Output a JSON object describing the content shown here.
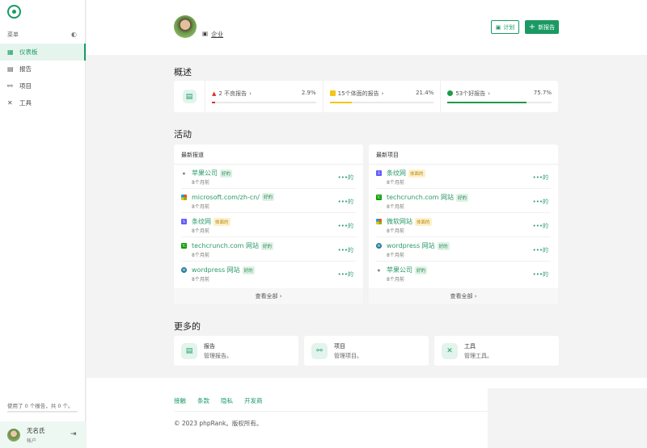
{
  "sidebar": {
    "menu_label": "菜单",
    "items": [
      {
        "label": "仪表板",
        "icon": "grid-icon",
        "active": true
      },
      {
        "label": "报告",
        "icon": "report-icon"
      },
      {
        "label": "项目",
        "icon": "project-icon"
      },
      {
        "label": "工具",
        "icon": "tools-icon"
      }
    ],
    "usage": "使用了 0 个报告，共 0 个。",
    "usage_fraction": 0,
    "user": {
      "name": "无名氏",
      "role": "帐户"
    }
  },
  "header": {
    "org": "企业",
    "plan_label": "计划",
    "new_report_label": "新报告"
  },
  "overview": {
    "title": "概述",
    "stats": [
      {
        "label": "2 不良报告",
        "percent": "2.9%",
        "value": 2.9,
        "color": "#d9302f"
      },
      {
        "label": "15个体面的报告",
        "percent": "21.4%",
        "value": 21.4,
        "color": "#f5c518"
      },
      {
        "label": "53个好报告",
        "percent": "75.7%",
        "value": 75.7,
        "color": "#1f9a48"
      }
    ]
  },
  "activity": {
    "title": "活动",
    "view_all": "查看全部",
    "latest_reports": {
      "title": "最新报道",
      "items": [
        {
          "name": "苹果公司",
          "badge": "好的",
          "type": "good",
          "icon": "apple-icon",
          "time": "8个月前"
        },
        {
          "name": "microsoft.com/zh-cn/",
          "badge": "好的",
          "type": "good",
          "icon": "microsoft-icon",
          "time": "8个月前"
        },
        {
          "name": "条纹网",
          "badge": "体面的",
          "type": "dec",
          "icon": "stripe-icon",
          "time": "8个月前"
        },
        {
          "name": "techcrunch.com 网站",
          "badge": "好的",
          "type": "good",
          "icon": "techcrunch-icon",
          "time": "8个月前"
        },
        {
          "name": "wordpress 网站",
          "badge": "好的",
          "type": "good",
          "icon": "wordpress-icon",
          "time": "8个月前"
        }
      ]
    },
    "latest_projects": {
      "title": "最新项目",
      "items": [
        {
          "name": "条纹网",
          "badge": "体面的",
          "type": "dec",
          "icon": "stripe-icon",
          "time": "8个月前"
        },
        {
          "name": "techcrunch.com 网站",
          "badge": "好的",
          "type": "good",
          "icon": "techcrunch-icon",
          "time": "8个月前"
        },
        {
          "name": "微软网站",
          "badge": "体面的",
          "type": "dec",
          "icon": "microsoft-icon",
          "time": "8个月前"
        },
        {
          "name": "wordpress 网站",
          "badge": "好的",
          "type": "good",
          "icon": "wordpress-icon",
          "time": "8个月前"
        },
        {
          "name": "苹果公司",
          "badge": "好的",
          "type": "good",
          "icon": "apple-icon",
          "time": "8个月前"
        }
      ]
    },
    "more_label": "•••的"
  },
  "more": {
    "title": "更多的",
    "cards": [
      {
        "title": "报告",
        "desc": "管理报告。",
        "icon": "report-icon"
      },
      {
        "title": "项目",
        "desc": "管理项目。",
        "icon": "project-icon"
      },
      {
        "title": "工具",
        "desc": "管理工具。",
        "icon": "tools-icon"
      }
    ]
  },
  "footer": {
    "links": [
      "接触",
      "条款",
      "隐私",
      "开发商"
    ],
    "copyright": "© 2023 phpRank。版权所有。"
  }
}
